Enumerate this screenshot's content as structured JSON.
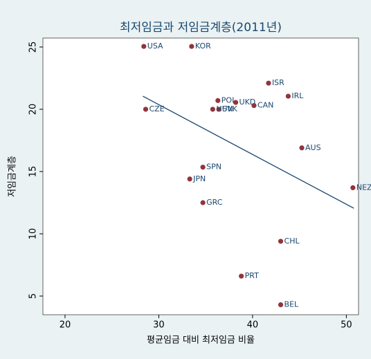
{
  "chart_data": {
    "type": "scatter",
    "title": "최저임금과 저임금계층(2011년)",
    "x_label": "평균임금 대비 최저임금 비율",
    "y_label": "저임금계층",
    "labels": [
      "USA",
      "KOR",
      "ISR",
      "IRL",
      "POL",
      "UKD",
      "CAN",
      "CZE",
      "SVK",
      "HUN",
      "AUS",
      "SPN",
      "JPN",
      "NEZ",
      "GRC",
      "CHL",
      "PRT",
      "BEL"
    ],
    "x": [
      28.4,
      33.5,
      41.7,
      43.8,
      36.3,
      38.2,
      40.15,
      28.6,
      36.4,
      35.75,
      45.25,
      34.7,
      33.3,
      50.7,
      34.7,
      43.0,
      38.8,
      43.0
    ],
    "values": [
      25.05,
      25.05,
      22.1,
      21.05,
      20.7,
      20.55,
      20.3,
      20.0,
      20.0,
      20.0,
      16.9,
      15.35,
      14.4,
      13.7,
      12.5,
      9.4,
      6.6,
      4.3
    ],
    "color": "#90353b",
    "label_color": "#1a476f",
    "fit_line": {
      "x": [
        28.3,
        50.8
      ],
      "y": [
        21.05,
        12.05
      ],
      "color": "#1a476f"
    },
    "xlim": [
      17.64,
      51.3
    ],
    "xticks": [
      20,
      30,
      40,
      50
    ],
    "ylim": [
      3.5,
      25.72
    ],
    "yticks": [
      5,
      10,
      15,
      20,
      25
    ]
  }
}
